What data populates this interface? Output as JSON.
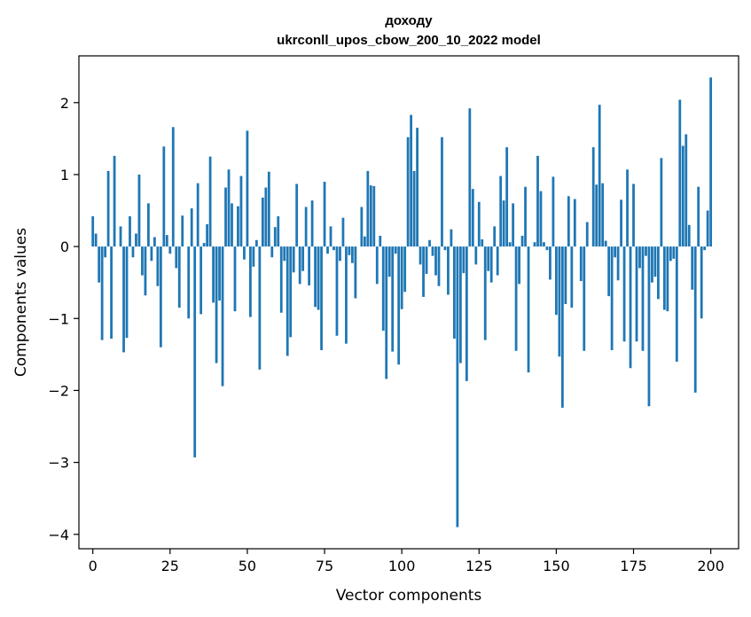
{
  "chart_data": {
    "type": "bar",
    "title": "доходу",
    "subtitle": "ukrconll_upos_cbow_200_10_2022 model",
    "xlabel": "Vector components",
    "ylabel": "Components values",
    "xlim": [
      -4.5,
      209
    ],
    "ylim": [
      -4.2,
      2.65
    ],
    "xticks": [
      0,
      25,
      50,
      75,
      100,
      125,
      150,
      175,
      200
    ],
    "yticks": [
      -4,
      -3,
      -2,
      -1,
      0,
      1,
      2
    ],
    "ytick_labels": [
      "−4",
      "−3",
      "−2",
      "−1",
      "0",
      "1",
      "2"
    ],
    "bar_color": "#1f77b4",
    "values": [
      0.42,
      0.18,
      -0.5,
      -1.3,
      -0.15,
      1.05,
      -1.28,
      1.26,
      0.0,
      0.28,
      -1.47,
      -1.27,
      0.42,
      -0.15,
      0.18,
      1.0,
      -0.4,
      -0.68,
      0.6,
      -0.2,
      0.13,
      -0.55,
      -1.4,
      1.39,
      0.16,
      -0.1,
      1.66,
      -0.3,
      -0.85,
      0.43,
      0.0,
      -1.0,
      0.53,
      -2.93,
      0.88,
      -0.94,
      0.05,
      0.31,
      1.25,
      -0.78,
      -1.62,
      -0.75,
      -1.94,
      0.82,
      1.07,
      0.6,
      -0.9,
      0.56,
      0.98,
      -0.18,
      1.61,
      -0.98,
      -0.28,
      0.09,
      -1.71,
      0.68,
      0.82,
      1.04,
      -0.15,
      0.27,
      0.42,
      -0.92,
      -0.2,
      -1.52,
      -1.26,
      -0.36,
      0.87,
      -0.52,
      -0.34,
      0.55,
      -0.54,
      0.64,
      -0.84,
      -0.88,
      -1.44,
      0.9,
      -0.1,
      0.28,
      -0.05,
      -1.24,
      -0.2,
      0.4,
      -1.35,
      -0.12,
      -0.23,
      -0.72,
      0.0,
      0.55,
      0.14,
      1.05,
      0.85,
      0.84,
      -0.52,
      0.15,
      -1.17,
      -1.84,
      -0.42,
      -1.46,
      -0.1,
      -1.64,
      -0.87,
      -0.63,
      1.52,
      1.83,
      1.05,
      1.65,
      -0.25,
      -0.7,
      -0.38,
      0.09,
      -0.13,
      -0.4,
      -0.55,
      1.52,
      -0.05,
      -0.67,
      0.24,
      -1.28,
      -3.9,
      -1.62,
      -0.37,
      -1.87,
      1.92,
      0.8,
      -0.25,
      0.62,
      0.1,
      -1.3,
      -0.34,
      -0.5,
      0.28,
      -0.4,
      0.98,
      0.64,
      1.38,
      0.06,
      0.6,
      -1.45,
      -0.52,
      0.15,
      0.83,
      -1.75,
      0.0,
      0.06,
      1.26,
      0.77,
      0.06,
      -0.05,
      -0.46,
      0.97,
      -0.95,
      -1.53,
      -2.24,
      -0.8,
      0.7,
      -0.85,
      0.66,
      0.0,
      -0.48,
      -1.45,
      0.34,
      0.0,
      1.38,
      0.86,
      1.97,
      0.88,
      0.08,
      -0.69,
      -1.44,
      -0.15,
      -0.47,
      0.65,
      -1.32,
      1.07,
      -1.69,
      0.87,
      -1.32,
      -0.3,
      -1.45,
      -0.13,
      -2.22,
      -0.5,
      -0.42,
      -0.73,
      1.23,
      -0.88,
      -0.9,
      -0.2,
      -0.17,
      -1.6,
      2.04,
      1.4,
      1.56,
      0.3,
      -0.6,
      -2.03,
      0.83,
      -1.0,
      -0.05,
      0.5,
      2.35
    ]
  }
}
